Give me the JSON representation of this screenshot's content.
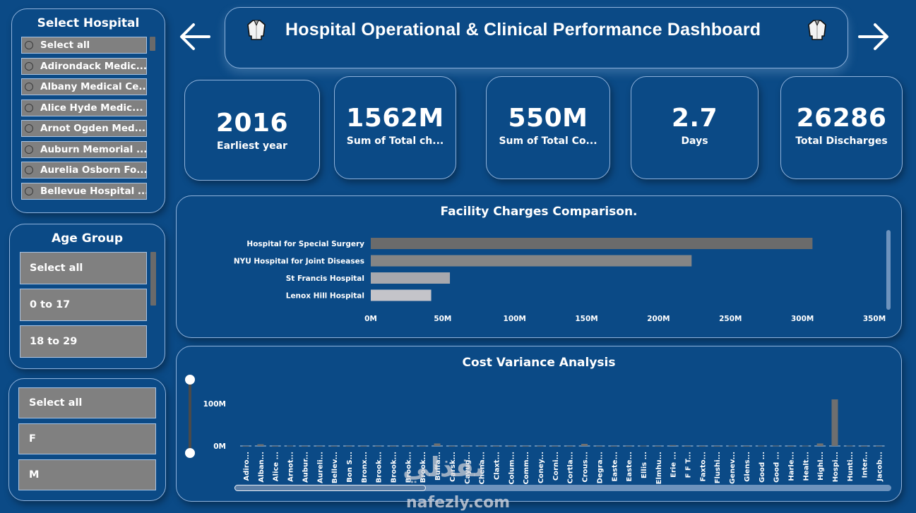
{
  "header": {
    "title": "Hospital Operational & Clinical Performance Dashboard",
    "back_icon": "arrow-left-icon",
    "forward_icon": "arrow-right-icon",
    "decor_icon": "lab-coat-icon"
  },
  "hospital_slicer": {
    "title": "Select Hospital",
    "items": [
      "Select all",
      "Adirondack Medic...",
      "Albany Medical Ce...",
      "Alice Hyde Medic...",
      "Arnot Ogden Med...",
      "Auburn Memorial ...",
      "Aurelia Osborn Fo...",
      "Bellevue Hospital ..."
    ]
  },
  "age_slicer": {
    "title": "Age Group",
    "items": [
      "Select all",
      "0 to 17",
      "18 to 29"
    ]
  },
  "gender_slicer": {
    "items": [
      "Select all",
      "F",
      "M"
    ]
  },
  "kpis": [
    {
      "value": "2016",
      "label": "Earliest year"
    },
    {
      "value": "1562M",
      "label": "Sum of Total ch..."
    },
    {
      "value": "550M",
      "label": "Sum of Total Co..."
    },
    {
      "value": "2.7",
      "label": "Days"
    },
    {
      "value": "26286",
      "label": "Total Discharges"
    }
  ],
  "chart_data": [
    {
      "type": "bar",
      "orientation": "horizontal",
      "title": "Facility Charges Comparison.",
      "categories": [
        "Hospital for Special Surgery",
        "NYU Hospital for Joint Diseases",
        "St Francis Hospital",
        "Lenox Hill Hospital"
      ],
      "values": [
        307,
        223,
        55,
        42
      ],
      "unit": "M",
      "colors": [
        "#6b6b6b",
        "#858585",
        "#a8a8ad",
        "#c4c4c9"
      ],
      "xlim": [
        0,
        350
      ],
      "xticks": [
        "0M",
        "50M",
        "100M",
        "150M",
        "200M",
        "250M",
        "300M",
        "350M"
      ],
      "xlabel": "",
      "ylabel": ""
    },
    {
      "type": "bar",
      "orientation": "vertical",
      "title": "Cost Variance Analysis",
      "categories": [
        "Adiro...",
        "Alban...",
        "Alice ...",
        "Arnot...",
        "Aubur...",
        "Aureli...",
        "Bellev...",
        "Bon S...",
        "Bronx...",
        "Brook...",
        "Brook...",
        "Brook...",
        "Brook...",
        "Buffa...",
        "Carsk...",
        "Cayug...",
        "Chena...",
        "Claxt...",
        "Colum...",
        "Comm...",
        "Coney...",
        "Corni...",
        "Cortla...",
        "Crous...",
        "Degra...",
        "Easte...",
        "Easte...",
        "Ellis ...",
        "Elmhu...",
        "Erie ...",
        "F F T...",
        "Faxto...",
        "Flushi...",
        "Genev...",
        "Glens...",
        "Good ...",
        "Good ...",
        "Harle...",
        "Healt...",
        "Highl...",
        "Hospi...",
        "Hunti...",
        "Inter...",
        "Jacob..."
      ],
      "values": [
        0.3,
        4,
        0.3,
        0.8,
        0.3,
        0.3,
        0.3,
        0.3,
        0.3,
        0.3,
        0.3,
        0.3,
        0.3,
        6,
        0.3,
        0.3,
        0.3,
        0.3,
        0.3,
        0.3,
        0.3,
        0.3,
        0.3,
        5,
        0.3,
        0.3,
        0.3,
        0.8,
        0.3,
        2,
        0.3,
        0.3,
        0.3,
        0.8,
        0.3,
        0.8,
        1,
        0.3,
        0.8,
        6,
        110,
        1,
        0.3,
        0.3
      ],
      "unit": "M",
      "color": "#6f6f6f",
      "ylim": [
        0,
        110
      ],
      "yticks": [
        "0M",
        "100M"
      ],
      "xlabel": "",
      "ylabel": ""
    }
  ],
  "watermark": {
    "latin": "nafezly.com",
    "arabic": "نفذلي"
  }
}
